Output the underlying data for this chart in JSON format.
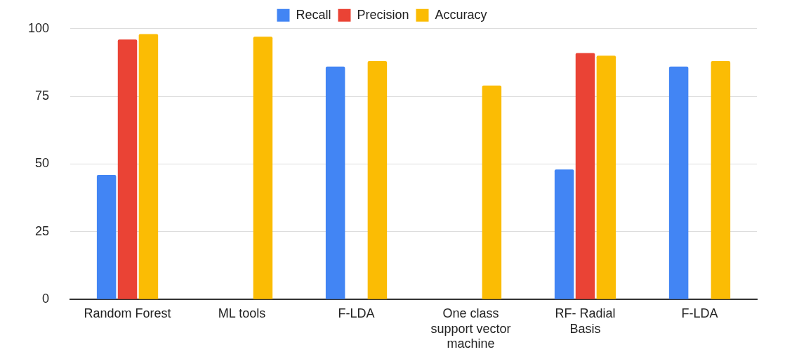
{
  "chart_data": {
    "type": "bar",
    "categories": [
      "Random Forest",
      "ML tools",
      "F-LDA",
      "One class support vector machine",
      "RF- Radial Basis",
      "F-LDA"
    ],
    "series": [
      {
        "name": "Recall",
        "color": "#4285f4",
        "values": [
          46,
          null,
          86,
          null,
          48,
          86
        ]
      },
      {
        "name": "Precision",
        "color": "#ea4335",
        "values": [
          96,
          null,
          null,
          null,
          91,
          null
        ]
      },
      {
        "name": "Accuracy",
        "color": "#fbbc04",
        "values": [
          98,
          97,
          88,
          79,
          90,
          88
        ]
      }
    ],
    "ylim": [
      0,
      100
    ],
    "yticks": [
      0,
      25,
      50,
      75,
      100
    ],
    "grid": "y",
    "legend": "top"
  }
}
